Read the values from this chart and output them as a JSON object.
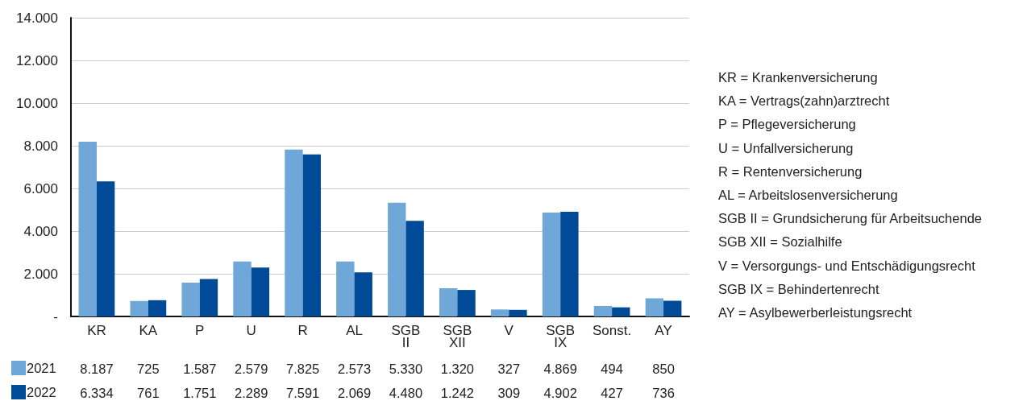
{
  "chart_data": {
    "type": "bar",
    "categories": [
      "KR",
      "KA",
      "P",
      "U",
      "R",
      "AL",
      "SGB II",
      "SGB XII",
      "V",
      "SGB IX",
      "Sonst.",
      "AY"
    ],
    "series": [
      {
        "name": "2021",
        "color": "#6fa8d8",
        "values": [
          8187,
          725,
          1587,
          2579,
          7825,
          2573,
          5330,
          1320,
          327,
          4869,
          494,
          850
        ],
        "value_labels": [
          "8.187",
          "725",
          "1.587",
          "2.579",
          "7.825",
          "2.573",
          "5.330",
          "1.320",
          "327",
          "4.869",
          "494",
          "850"
        ]
      },
      {
        "name": "2022",
        "color": "#004a98",
        "values": [
          6334,
          761,
          1751,
          2289,
          7591,
          2069,
          4480,
          1242,
          309,
          4902,
          427,
          736
        ],
        "value_labels": [
          "6.334",
          "761",
          "1.751",
          "2.289",
          "7.591",
          "2.069",
          "4.480",
          "1.242",
          "309",
          "4.902",
          "427",
          "736"
        ]
      }
    ],
    "ylim": [
      0,
      14000
    ],
    "yticks": [
      {
        "value": 0,
        "label": "-"
      },
      {
        "value": 2000,
        "label": "2.000"
      },
      {
        "value": 4000,
        "label": "4.000"
      },
      {
        "value": 6000,
        "label": "6.000"
      },
      {
        "value": 8000,
        "label": "8.000"
      },
      {
        "value": 10000,
        "label": "10.000"
      },
      {
        "value": 12000,
        "label": "12.000"
      },
      {
        "value": 14000,
        "label": "14.000"
      }
    ],
    "grid": "y",
    "legend": "bottom left",
    "annotations": [
      "KR = Krankenversicherung",
      "KA = Vertrags(zahn)arztrecht",
      "P = Pflegeversicherung",
      "U = Unfallversicherung",
      "R = Rentenversicherung",
      "AL = Arbeitslosenversicherung",
      "SGB II = Grundsicherung für Arbeitsuchende",
      "SGB XII = Sozialhilfe",
      "V = Versorgungs- und Entschädigungsrecht",
      "SGB IX = Behindertenrecht",
      "AY = Asylbewerberleistungsrecht"
    ]
  }
}
